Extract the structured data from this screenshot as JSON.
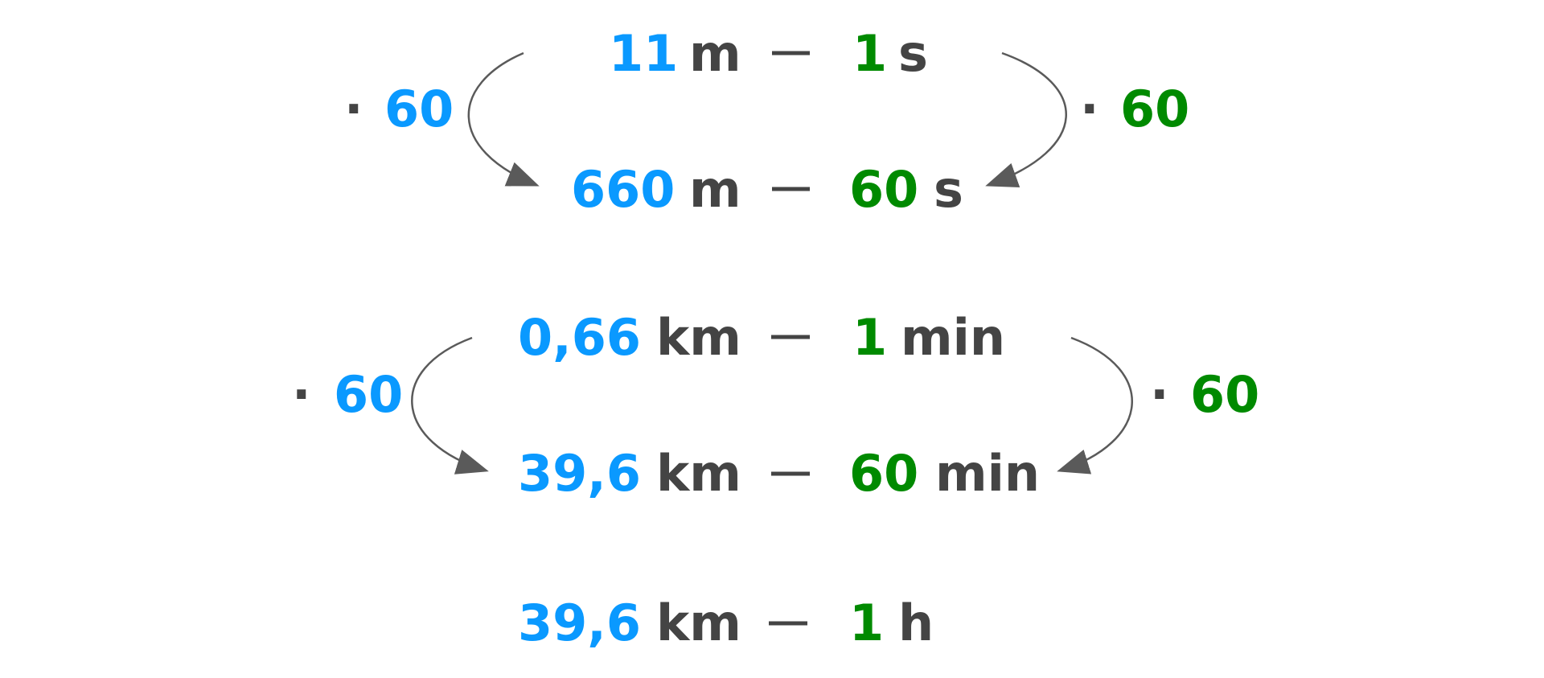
{
  "colors": {
    "blue": "#0a99ff",
    "green": "#008a00",
    "text": "#444444",
    "arrow": "#5a5a5a"
  },
  "multiplier_symbol": "·",
  "blocks": [
    {
      "rows": [
        {
          "left_value": "11",
          "left_unit": "m",
          "right_value": "1",
          "right_unit": "s"
        },
        {
          "left_value": "660",
          "left_unit": "m",
          "right_value": "60",
          "right_unit": "s"
        }
      ],
      "left_factor": "60",
      "right_factor": "60"
    },
    {
      "rows": [
        {
          "left_value": "0,66",
          "left_unit": "km",
          "right_value": "1",
          "right_unit": "min"
        },
        {
          "left_value": "39,6",
          "left_unit": "km",
          "right_value": "60",
          "right_unit": "min"
        }
      ],
      "left_factor": "60",
      "right_factor": "60"
    }
  ],
  "final_row": {
    "left_value": "39,6",
    "left_unit": "km",
    "right_value": "1",
    "right_unit": "h"
  }
}
